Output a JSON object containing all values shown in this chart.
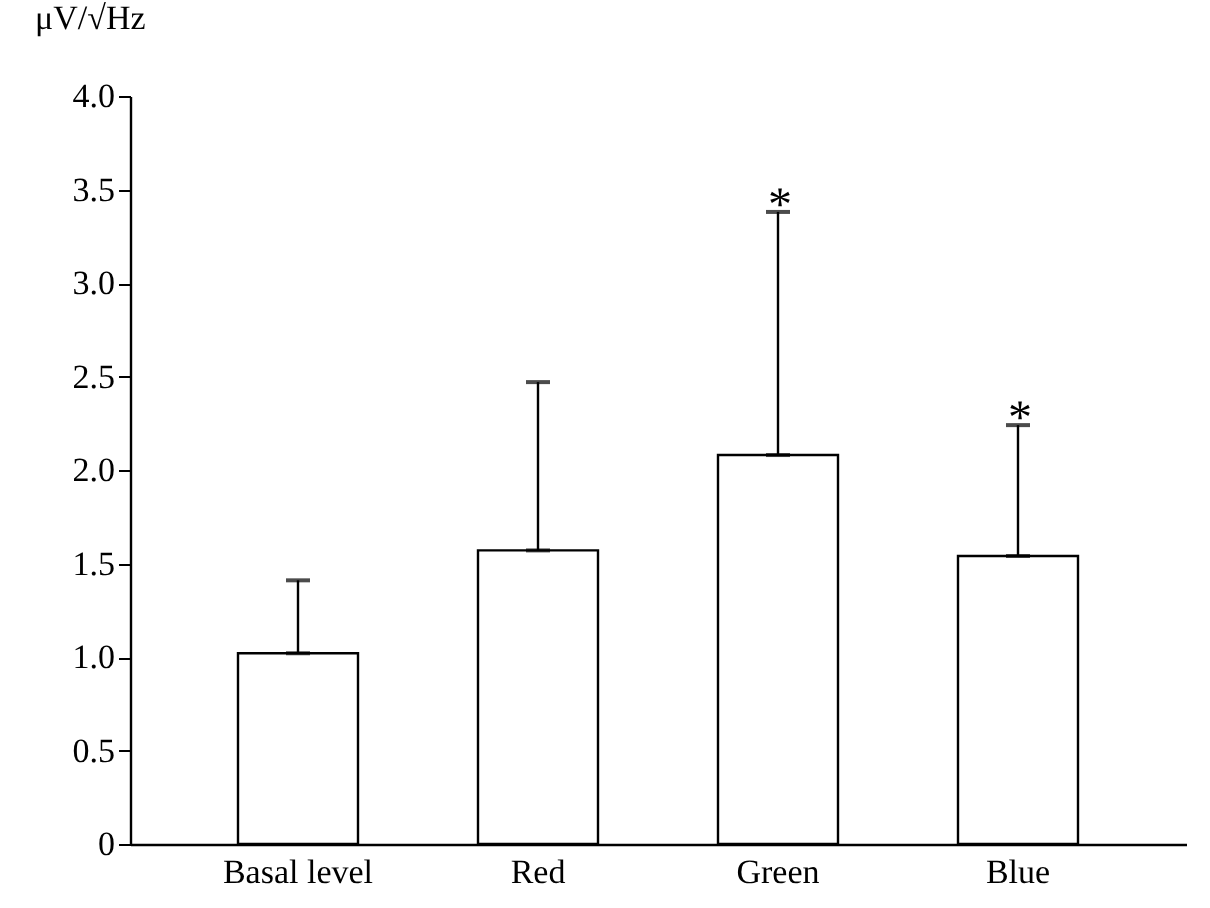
{
  "chart_data": {
    "type": "bar",
    "ylabel": "μV/√Hz",
    "categories": [
      "Basal level",
      "Red",
      "Green",
      "Blue"
    ],
    "values": [
      1.02,
      1.57,
      2.08,
      1.54
    ],
    "errors": [
      [
        1.02,
        1.41
      ],
      [
        1.57,
        2.47
      ],
      [
        2.08,
        3.38
      ],
      [
        1.54,
        2.24
      ]
    ],
    "color": "#ffffff",
    "ylim": [
      0,
      4.0
    ],
    "yticks": [
      {
        "value": 0,
        "label": "0"
      },
      {
        "value": 0.5,
        "label": "0.5"
      },
      {
        "value": 1,
        "label": "1.0"
      },
      {
        "value": 1.5,
        "label": "1.5"
      },
      {
        "value": 2,
        "label": "2.0"
      },
      {
        "value": 2.5,
        "label": "2.5"
      },
      {
        "value": 3,
        "label": "3.0"
      },
      {
        "value": 3.5,
        "label": "3.5"
      },
      {
        "value": 4,
        "label": "4.0"
      }
    ],
    "annotations": [
      {
        "text": "*",
        "x": "Green",
        "y": 3.38
      },
      {
        "text": "*",
        "x": "Blue",
        "y": 2.24
      }
    ],
    "grid": false
  }
}
